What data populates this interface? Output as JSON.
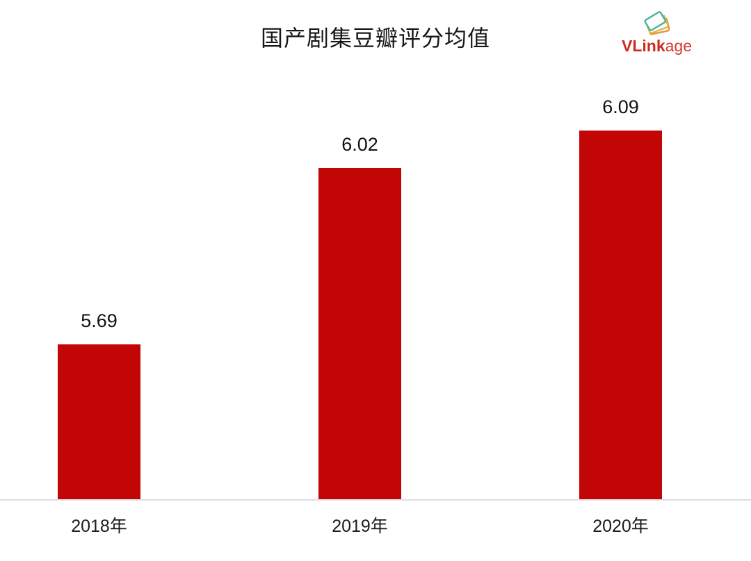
{
  "header": {
    "title": "国产剧集豆瓣评分均值"
  },
  "logo": {
    "name": "VLinkage",
    "text_bold": "VLink",
    "text_light": "age",
    "color": "#ce2a21",
    "icon": "stacked-cards-icon",
    "icon_colors": [
      "#e2973b",
      "#e2b53e",
      "#45b29b"
    ]
  },
  "chart_data": {
    "type": "bar",
    "title": "国产剧集豆瓣评分均值",
    "categories": [
      "2018年",
      "2019年",
      "2020年"
    ],
    "values": [
      5.69,
      6.02,
      6.09
    ],
    "value_labels": [
      "5.69",
      "6.02",
      "6.09"
    ],
    "xlabel": "",
    "ylabel": "",
    "ylim": [
      5.4,
      6.2
    ],
    "bar_color": "#c20606",
    "axis_line_color": "#dfdfe2",
    "grid": false,
    "legend_position": "none"
  }
}
